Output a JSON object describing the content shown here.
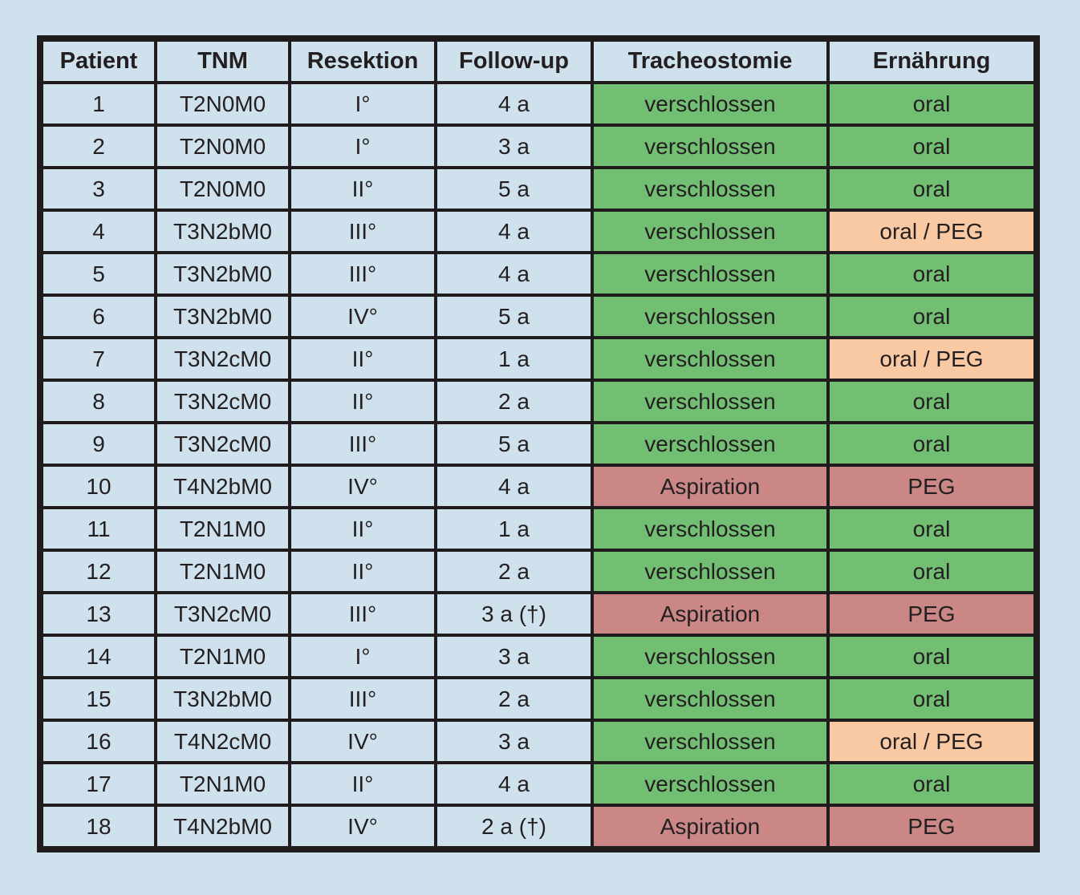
{
  "colors": {
    "page_background": "#cfe1ec",
    "cell_blue": "#cfe1ec",
    "green": "#72bf74",
    "red": "#ca8786",
    "orange": "#f8c9a3",
    "border": "#201c1d",
    "text": "#231f20"
  },
  "chart_data": {
    "type": "table",
    "columns": [
      {
        "key": "patient",
        "label": "Patient"
      },
      {
        "key": "tnm",
        "label": "TNM"
      },
      {
        "key": "resektion",
        "label": "Resektion"
      },
      {
        "key": "follow-up",
        "label": "Follow-up"
      },
      {
        "key": "tracheostomie",
        "label": "Tracheostomie"
      },
      {
        "key": "ernaehrung",
        "label": "Ernährung"
      }
    ],
    "rows": [
      {
        "cells": [
          "1",
          "T2N0M0",
          "I°",
          "4 a",
          "verschlossen",
          "oral"
        ],
        "cell_colors": [
          "cell_blue",
          "cell_blue",
          "cell_blue",
          "cell_blue",
          "green",
          "green"
        ]
      },
      {
        "cells": [
          "2",
          "T2N0M0",
          "I°",
          "3 a",
          "verschlossen",
          "oral"
        ],
        "cell_colors": [
          "cell_blue",
          "cell_blue",
          "cell_blue",
          "cell_blue",
          "green",
          "green"
        ]
      },
      {
        "cells": [
          "3",
          "T2N0M0",
          "II°",
          "5 a",
          "verschlossen",
          "oral"
        ],
        "cell_colors": [
          "cell_blue",
          "cell_blue",
          "cell_blue",
          "cell_blue",
          "green",
          "green"
        ]
      },
      {
        "cells": [
          "4",
          "T3N2bM0",
          "III°",
          "4 a",
          "verschlossen",
          "oral / PEG"
        ],
        "cell_colors": [
          "cell_blue",
          "cell_blue",
          "cell_blue",
          "cell_blue",
          "green",
          "orange"
        ]
      },
      {
        "cells": [
          "5",
          "T3N2bM0",
          "III°",
          "4 a",
          "verschlossen",
          "oral"
        ],
        "cell_colors": [
          "cell_blue",
          "cell_blue",
          "cell_blue",
          "cell_blue",
          "green",
          "green"
        ]
      },
      {
        "cells": [
          "6",
          "T3N2bM0",
          "IV°",
          "5 a",
          "verschlossen",
          "oral"
        ],
        "cell_colors": [
          "cell_blue",
          "cell_blue",
          "cell_blue",
          "cell_blue",
          "green",
          "green"
        ]
      },
      {
        "cells": [
          "7",
          "T3N2cM0",
          "II°",
          "1 a",
          "verschlossen",
          "oral / PEG"
        ],
        "cell_colors": [
          "cell_blue",
          "cell_blue",
          "cell_blue",
          "cell_blue",
          "green",
          "orange"
        ]
      },
      {
        "cells": [
          "8",
          "T3N2cM0",
          "II°",
          "2 a",
          "verschlossen",
          "oral"
        ],
        "cell_colors": [
          "cell_blue",
          "cell_blue",
          "cell_blue",
          "cell_blue",
          "green",
          "green"
        ]
      },
      {
        "cells": [
          "9",
          "T3N2cM0",
          "III°",
          "5 a",
          "verschlossen",
          "oral"
        ],
        "cell_colors": [
          "cell_blue",
          "cell_blue",
          "cell_blue",
          "cell_blue",
          "green",
          "green"
        ]
      },
      {
        "cells": [
          "10",
          "T4N2bM0",
          "IV°",
          "4 a",
          "Aspiration",
          "PEG"
        ],
        "cell_colors": [
          "cell_blue",
          "cell_blue",
          "cell_blue",
          "cell_blue",
          "red",
          "red"
        ]
      },
      {
        "cells": [
          "11",
          "T2N1M0",
          "II°",
          "1 a",
          "verschlossen",
          "oral"
        ],
        "cell_colors": [
          "cell_blue",
          "cell_blue",
          "cell_blue",
          "cell_blue",
          "green",
          "green"
        ]
      },
      {
        "cells": [
          "12",
          "T2N1M0",
          "II°",
          "2 a",
          "verschlossen",
          "oral"
        ],
        "cell_colors": [
          "cell_blue",
          "cell_blue",
          "cell_blue",
          "cell_blue",
          "green",
          "green"
        ]
      },
      {
        "cells": [
          "13",
          "T3N2cM0",
          "III°",
          "3 a (†)",
          "Aspiration",
          "PEG"
        ],
        "cell_colors": [
          "cell_blue",
          "cell_blue",
          "cell_blue",
          "cell_blue",
          "red",
          "red"
        ]
      },
      {
        "cells": [
          "14",
          "T2N1M0",
          "I°",
          "3 a",
          "verschlossen",
          "oral"
        ],
        "cell_colors": [
          "cell_blue",
          "cell_blue",
          "cell_blue",
          "cell_blue",
          "green",
          "green"
        ]
      },
      {
        "cells": [
          "15",
          "T3N2bM0",
          "III°",
          "2 a",
          "verschlossen",
          "oral"
        ],
        "cell_colors": [
          "cell_blue",
          "cell_blue",
          "cell_blue",
          "cell_blue",
          "green",
          "green"
        ]
      },
      {
        "cells": [
          "16",
          "T4N2cM0",
          "IV°",
          "3 a",
          "verschlossen",
          "oral / PEG"
        ],
        "cell_colors": [
          "cell_blue",
          "cell_blue",
          "cell_blue",
          "cell_blue",
          "green",
          "orange"
        ]
      },
      {
        "cells": [
          "17",
          "T2N1M0",
          "II°",
          "4 a",
          "verschlossen",
          "oral"
        ],
        "cell_colors": [
          "cell_blue",
          "cell_blue",
          "cell_blue",
          "cell_blue",
          "green",
          "green"
        ]
      },
      {
        "cells": [
          "18",
          "T4N2bM0",
          "IV°",
          "2 a (†)",
          "Aspiration",
          "PEG"
        ],
        "cell_colors": [
          "cell_blue",
          "cell_blue",
          "cell_blue",
          "cell_blue",
          "red",
          "red"
        ]
      }
    ]
  }
}
